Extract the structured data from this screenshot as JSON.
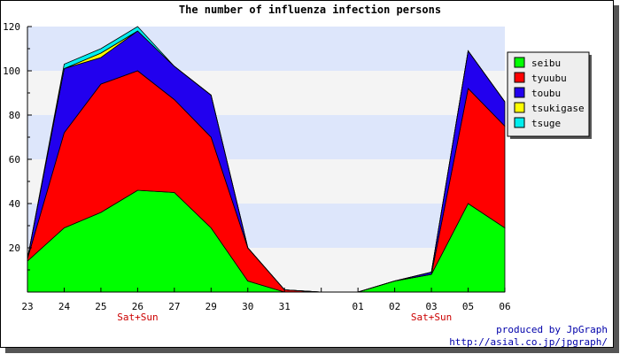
{
  "chart_data": {
    "type": "area",
    "stacked": true,
    "title": "The number of influenza infection persons",
    "categories": [
      "23",
      "24",
      "25",
      "26",
      "27",
      "29",
      "30",
      "31",
      "",
      "01",
      "02",
      "03",
      "05",
      "06"
    ],
    "weekend_marks": [
      {
        "category_index": 3,
        "label": "Sat+Sun"
      },
      {
        "category_index": 11,
        "label": "Sat+Sun"
      }
    ],
    "ylim": [
      0,
      120
    ],
    "yticks": [
      20,
      40,
      60,
      80,
      100,
      120
    ],
    "grid": "horizontal alternating bands",
    "legend_position": "right",
    "series": [
      {
        "name": "seibu",
        "color": "#00ff00",
        "values": [
          14,
          29,
          36,
          46,
          45,
          29,
          5,
          0,
          0,
          0,
          5,
          8,
          40,
          29
        ]
      },
      {
        "name": "tyuubu",
        "color": "#ff0000",
        "values": [
          1,
          43,
          58,
          54,
          42,
          41,
          15,
          1,
          0,
          0,
          0,
          0,
          52,
          46
        ]
      },
      {
        "name": "toubu",
        "color": "#2200ee",
        "values": [
          0,
          29,
          12,
          18,
          15,
          19,
          0,
          0,
          0,
          0,
          0,
          1,
          17,
          11
        ]
      },
      {
        "name": "tsukigase",
        "color": "#ffff00",
        "values": [
          0,
          0,
          2,
          0,
          0,
          0,
          0,
          0,
          0,
          0,
          0,
          0,
          0,
          0
        ]
      },
      {
        "name": "tsuge",
        "color": "#00eeee",
        "values": [
          0,
          2,
          2,
          2,
          0,
          0,
          0,
          0,
          0,
          0,
          0,
          0,
          0,
          0
        ]
      }
    ]
  },
  "credits": {
    "line1": "produced by JpGraph",
    "line2": "http://asial.co.jp/jpgraph/"
  }
}
